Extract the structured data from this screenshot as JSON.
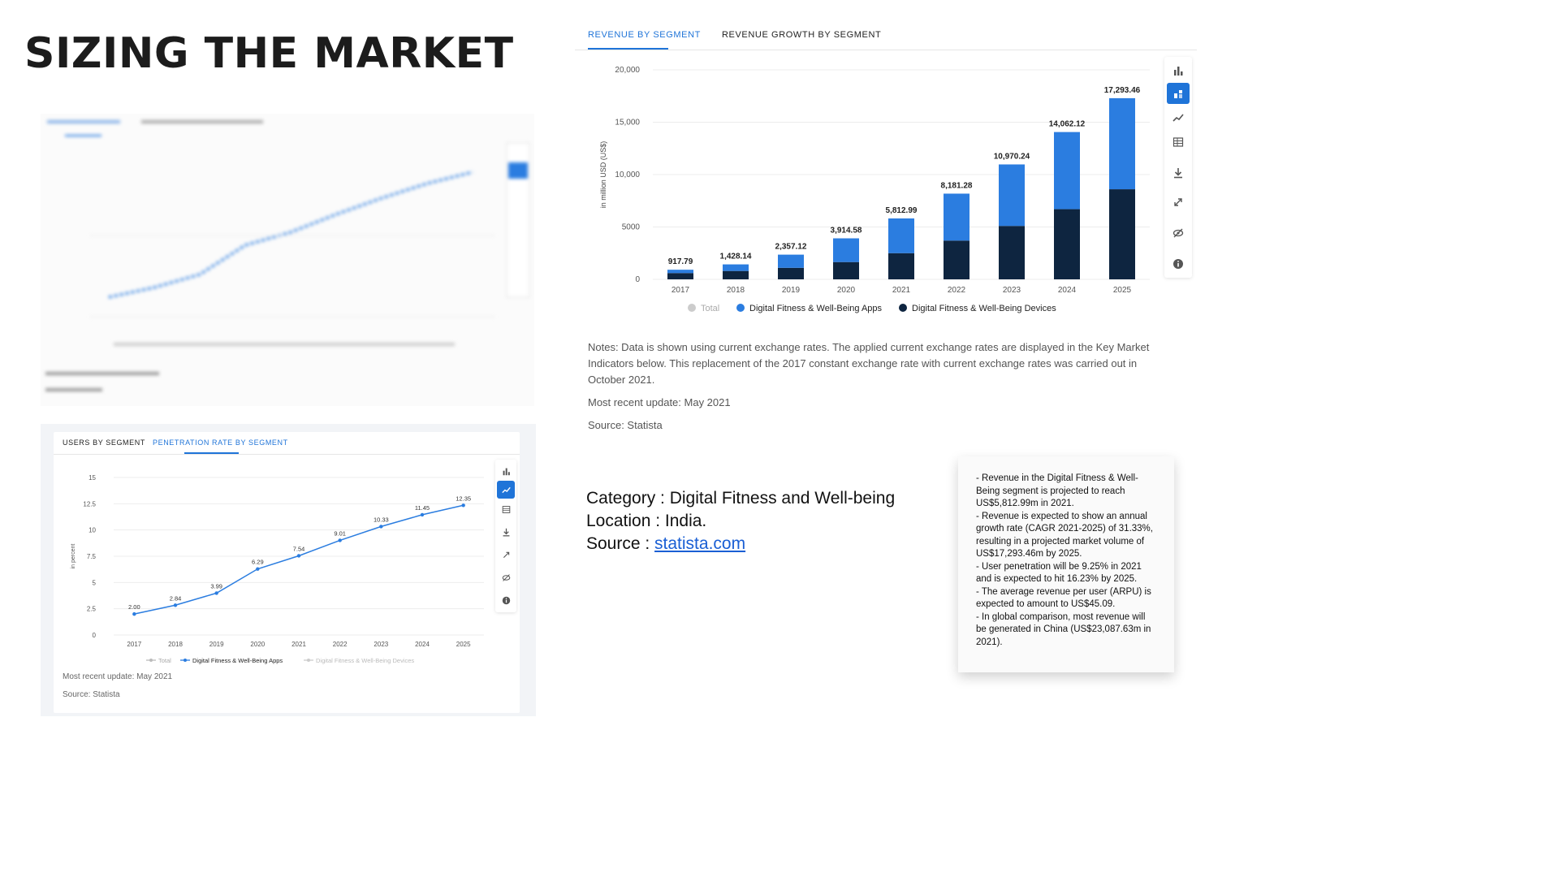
{
  "page": {
    "title": "SIZING THE MARKET"
  },
  "main_chart": {
    "tabs": [
      {
        "label": "REVENUE BY SEGMENT",
        "active": true
      },
      {
        "label": "REVENUE GROWTH BY SEGMENT",
        "active": false
      }
    ],
    "toolbar_icons": [
      "bar-chart-icon",
      "stacked-bar-icon",
      "line-chart-icon",
      "table-icon",
      "download-icon",
      "expand-icon",
      "hide-icon",
      "info-icon"
    ],
    "active_tool": 1
  },
  "notes": {
    "note": "Notes: Data is shown using current exchange rates. The applied current exchange rates are displayed in the Key Market Indicators below. This replacement of the 2017 constant exchange rate with current exchange rates was carried out in October 2021.",
    "update": "Most recent update: May 2021",
    "source": "Source: Statista"
  },
  "category": {
    "category_line": "Category : Digital Fitness and Well-being",
    "location_line": "Location : India.",
    "source_prefix": "Source : ",
    "source_link": "statista.com"
  },
  "note_card": {
    "lines": [
      "- Revenue in the Digital Fitness & Well-",
      "Being segment is projected to reach",
      "US$5,812.99m in 2021.",
      "- Revenue is expected to show an annual",
      "growth rate (CAGR 2021-2025) of 31.33%,",
      "resulting in a projected market volume of",
      "US$17,293.46m by 2025.",
      "- User penetration will be 9.25% in 2021",
      "and is expected to hit 16.23% by 2025.",
      "- The average revenue per user (ARPU) is",
      "expected to amount to US$45.09.",
      "-  In global comparison, most revenue will",
      "be generated in China (US$23,087.63m in",
      "2021)."
    ]
  },
  "bottom_panel": {
    "tabs": [
      {
        "label": "USERS BY SEGMENT",
        "active": false
      },
      {
        "label": "PENETRATION RATE BY SEGMENT",
        "active": true
      }
    ],
    "update": "Most recent update: May 2021",
    "source": "Source: Statista",
    "toolbar_icons": [
      "bar-chart-icon",
      "line-chart-icon",
      "table-icon",
      "download-icon",
      "expand-icon",
      "hide-icon",
      "info-icon"
    ],
    "active_tool": 1
  },
  "colors": {
    "apps": "#2b7de0",
    "devices": "#0e2540",
    "total": "#cccccc",
    "accent": "#1f74d8"
  },
  "chart_data": [
    {
      "type": "bar",
      "stacked": true,
      "title": "",
      "ylabel": "in million USD (US$)",
      "ylim": [
        0,
        20000
      ],
      "yticks": [
        0,
        5000,
        10000,
        15000,
        20000
      ],
      "ytick_labels": [
        "0",
        "5000",
        "10,000",
        "15,000",
        "20,000"
      ],
      "grid": true,
      "categories": [
        "2017",
        "2018",
        "2019",
        "2020",
        "2021",
        "2022",
        "2023",
        "2024",
        "2025"
      ],
      "series": [
        {
          "name": "Digital Fitness & Well-Being Devices",
          "values": [
            600,
            800,
            1100,
            1650,
            2500,
            3700,
            5100,
            6700,
            8600
          ]
        },
        {
          "name": "Digital Fitness & Well-Being Apps",
          "values": [
            317.79,
            628.14,
            1257.12,
            2264.58,
            3312.99,
            4481.28,
            5870.24,
            7362.12,
            8693.46
          ]
        }
      ],
      "totals": [
        917.79,
        1428.14,
        2357.12,
        3914.58,
        5812.99,
        8181.28,
        10970.24,
        14062.12,
        17293.46
      ],
      "total_labels": [
        "917.79",
        "1,428.14",
        "2,357.12",
        "3,914.58",
        "5,812.99",
        "8,181.28",
        "10,970.24",
        "14,062.12",
        "17,293.46"
      ],
      "legend": [
        "Total",
        "Digital Fitness & Well-Being Apps",
        "Digital Fitness & Well-Being Devices"
      ],
      "legend_position": "bottom"
    },
    {
      "type": "line",
      "title": "",
      "ylabel": "in percent",
      "ylim": [
        0,
        15
      ],
      "yticks": [
        0,
        2.5,
        5,
        7.5,
        10,
        12.5,
        15
      ],
      "ytick_labels": [
        "0",
        "2.5",
        "5",
        "7.5",
        "10",
        "12.5",
        "15"
      ],
      "grid": true,
      "x": [
        "2017",
        "2018",
        "2019",
        "2020",
        "2021",
        "2022",
        "2023",
        "2024",
        "2025"
      ],
      "series": [
        {
          "name": "Digital Fitness & Well-Being Apps",
          "values": [
            2.0,
            2.84,
            3.99,
            6.29,
            7.54,
            9.01,
            10.33,
            11.45,
            12.35
          ],
          "labels": [
            "2.00",
            "2.84",
            "3.99",
            "6.29",
            "7.54",
            "9.01",
            "10.33",
            "11.45",
            "12.35"
          ]
        }
      ],
      "legend": [
        "Total",
        "Digital Fitness & Well-Being Apps",
        "Digital Fitness & Well-Being Devices"
      ],
      "legend_position": "bottom"
    }
  ]
}
